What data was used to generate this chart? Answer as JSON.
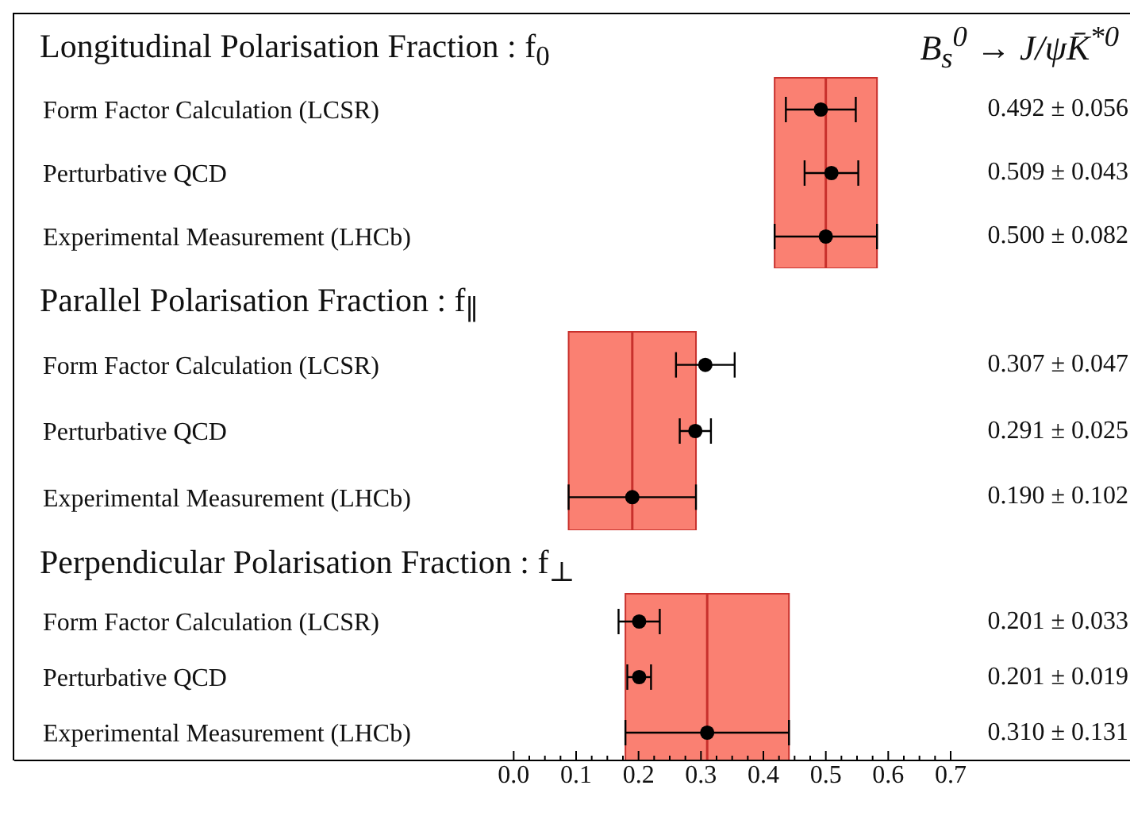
{
  "chart_data": [
    {
      "type": "scatter",
      "orientation": "horizontal",
      "title": "Longitudinal Polarisation Fraction : f$_{0}$",
      "annotations": [
        "B$_{s}$$^{0}$ → J/ψK̄$^{*0}$",
        "0.492 ± 0.056",
        "0.509 ± 0.043",
        "0.500 ± 0.082"
      ],
      "categories": [
        "Form Factor Calculation (LCSR)",
        "Perturbative QCD",
        "Experimental Measurement (LHCb)"
      ],
      "series": [
        {
          "color": "#000000",
          "values": [
            0.492,
            0.509,
            0.5
          ],
          "errors": [
            0.056,
            0.043,
            0.082
          ]
        }
      ],
      "bands": [
        {
          "axis": "x",
          "from": 0.418,
          "to": 0.582,
          "color": "#fa8072"
        }
      ],
      "ref_lines": [
        {
          "axis": "x",
          "value": 0.5,
          "color": "#c8302c"
        }
      ],
      "xlim": [
        -0.8,
        1.0
      ],
      "tick_labels": "y",
      "marker": "circle"
    },
    {
      "type": "scatter",
      "orientation": "horizontal",
      "title": "Parallel Polarisation Fraction : f$_{∥}$",
      "annotations": [
        "0.307 ± 0.047",
        "0.291 ± 0.025",
        "0.190 ± 0.102"
      ],
      "categories": [
        "Form Factor Calculation (LCSR)",
        "Perturbative QCD",
        "Experimental Measurement (LHCb)"
      ],
      "series": [
        {
          "color": "#000000",
          "values": [
            0.307,
            0.291,
            0.19
          ],
          "errors": [
            0.047,
            0.025,
            0.102
          ]
        }
      ],
      "bands": [
        {
          "axis": "x",
          "from": 0.088,
          "to": 0.292,
          "color": "#fa8072"
        }
      ],
      "ref_lines": [
        {
          "axis": "x",
          "value": 0.19,
          "color": "#c8302c"
        }
      ],
      "xlim": [
        -0.8,
        1.0
      ],
      "tick_labels": "y",
      "marker": "circle"
    },
    {
      "type": "scatter",
      "orientation": "horizontal",
      "title": "Perpendicular Polarisation Fraction : f$_{⊥}$",
      "annotations": [
        "0.201 ± 0.033",
        "0.201 ± 0.019",
        "0.310 ± 0.131"
      ],
      "categories": [
        "Form Factor Calculation (LCSR)",
        "Perturbative QCD",
        "Experimental Measurement (LHCb)"
      ],
      "series": [
        {
          "color": "#000000",
          "values": [
            0.201,
            0.201,
            0.31
          ],
          "errors": [
            0.033,
            0.019,
            0.131
          ]
        }
      ],
      "bands": [
        {
          "axis": "x",
          "from": 0.179,
          "to": 0.441,
          "color": "#fa8072"
        }
      ],
      "ref_lines": [
        {
          "axis": "x",
          "value": 0.31,
          "color": "#c8302c"
        }
      ],
      "xlim": [
        -0.8,
        1.0
      ],
      "xticks": [
        {
          "value": 0,
          "label": "0.0"
        },
        {
          "value": 0.025,
          "label": null
        },
        {
          "value": 0.05,
          "label": null
        },
        {
          "value": 0.075,
          "label": null
        },
        {
          "value": 0.1,
          "label": "0.1"
        },
        {
          "value": 0.125,
          "label": null
        },
        {
          "value": 0.15,
          "label": null
        },
        {
          "value": 0.175,
          "label": null
        },
        {
          "value": 0.2,
          "label": "0.2"
        },
        {
          "value": 0.225,
          "label": null
        },
        {
          "value": 0.25,
          "label": null
        },
        {
          "value": 0.275,
          "label": null
        },
        {
          "value": 0.3,
          "label": "0.3"
        },
        {
          "value": 0.325,
          "label": null
        },
        {
          "value": 0.35,
          "label": null
        },
        {
          "value": 0.375,
          "label": null
        },
        {
          "value": 0.4,
          "label": "0.4"
        },
        {
          "value": 0.425,
          "label": null
        },
        {
          "value": 0.45,
          "label": null
        },
        {
          "value": 0.475,
          "label": null
        },
        {
          "value": 0.5,
          "label": "0.5"
        },
        {
          "value": 0.525,
          "label": null
        },
        {
          "value": 0.55,
          "label": null
        },
        {
          "value": 0.575,
          "label": null
        },
        {
          "value": 0.6,
          "label": "0.6"
        },
        {
          "value": 0.625,
          "label": null
        },
        {
          "value": 0.65,
          "label": null
        },
        {
          "value": 0.675,
          "label": null
        },
        {
          "value": 0.7,
          "label": "0.7"
        }
      ],
      "marker": "circle"
    }
  ]
}
